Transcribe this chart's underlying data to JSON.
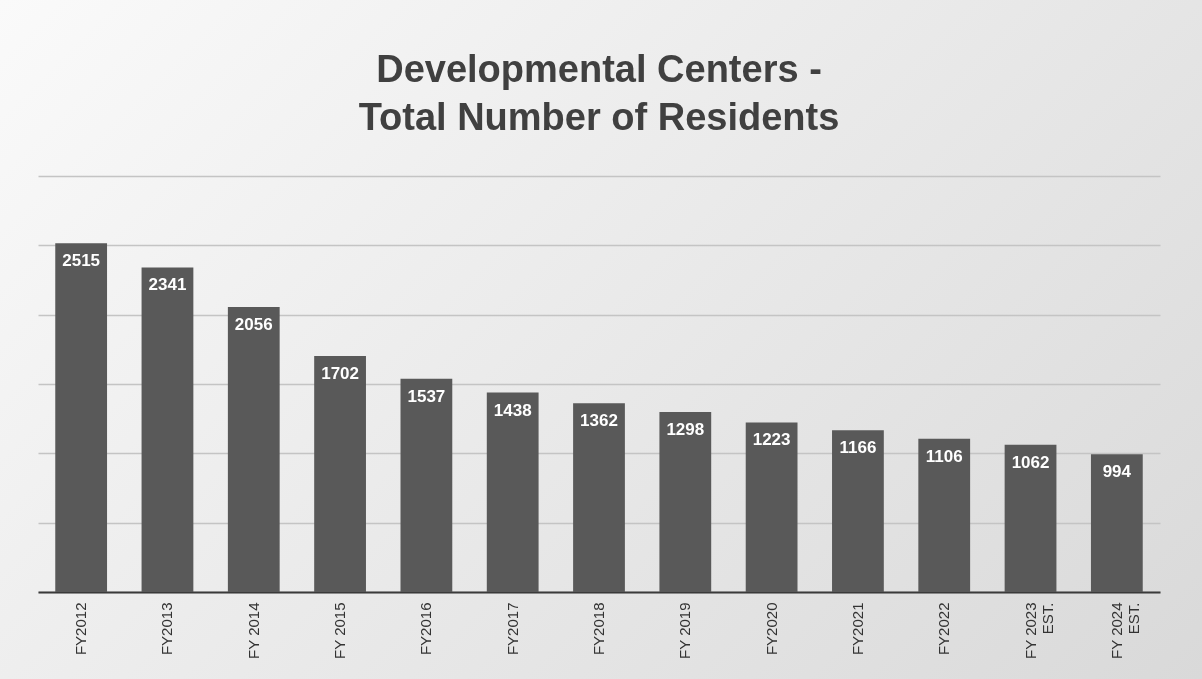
{
  "chart_data": {
    "type": "bar",
    "title": "Developmental Centers - Total Number of Residents",
    "categories": [
      "FY2012",
      "FY2013",
      "FY 2014",
      "FY 2015",
      "FY2016",
      "FY2017",
      "FY2018",
      "FY 2019",
      "FY2020",
      "FY2021",
      "FY2022",
      "FY 2023 EST.",
      "FY 2024 EST."
    ],
    "values": [
      2515,
      2341,
      2056,
      1702,
      1537,
      1438,
      1362,
      1298,
      1223,
      1166,
      1106,
      1062,
      994
    ],
    "color": "#595959",
    "data_labels": true,
    "grid": "y",
    "tick_labels": "x",
    "ylim": [
      0,
      3000
    ],
    "yticks": [
      {
        "value": 0,
        "label": null
      },
      {
        "value": 500,
        "label": null
      },
      {
        "value": 1000,
        "label": null
      },
      {
        "value": 1500,
        "label": null
      },
      {
        "value": 2000,
        "label": null
      },
      {
        "value": 2500,
        "label": null
      },
      {
        "value": 3000,
        "label": null
      }
    ]
  }
}
